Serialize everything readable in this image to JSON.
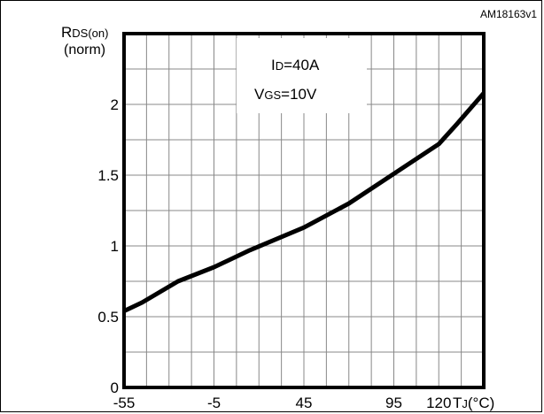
{
  "figure_id": "AM18163v1",
  "y_label_main": "R",
  "y_label_sub": "DS(on)",
  "y_label_unit": "(norm)",
  "annotation": [
    {
      "main": "I",
      "sub": "D",
      "rest": "=40A"
    },
    {
      "main": "V",
      "sub": "GS",
      "rest": "=10V"
    }
  ],
  "x_label_main": "T",
  "x_label_sub": "J",
  "x_label_rest": "(°C)",
  "chart_data": {
    "type": "line",
    "xlabel": "TJ(°C)",
    "ylabel": "RDS(on) (norm)",
    "xlim": [
      -55,
      145
    ],
    "ylim": [
      0,
      2.5
    ],
    "grid": true,
    "x_ticks": [
      {
        "value": -55,
        "label": "-55"
      },
      {
        "value": -5,
        "label": "-5"
      },
      {
        "value": 45,
        "label": "45"
      },
      {
        "value": 95,
        "label": "95"
      },
      {
        "value": 120,
        "label": "120"
      }
    ],
    "y_ticks": [
      {
        "value": 0,
        "label": "0"
      },
      {
        "value": 0.5,
        "label": "0.5"
      },
      {
        "value": 1,
        "label": "1"
      },
      {
        "value": 1.5,
        "label": "1.5"
      },
      {
        "value": 2,
        "label": "2"
      }
    ],
    "series": [
      {
        "color": "#000000",
        "x": [
          -55,
          -45,
          -25,
          -5,
          15,
          45,
          70,
          95,
          120,
          130,
          145
        ],
        "y": [
          0.54,
          0.6,
          0.75,
          0.85,
          0.97,
          1.13,
          1.3,
          1.51,
          1.72,
          1.86,
          2.08
        ]
      }
    ]
  }
}
